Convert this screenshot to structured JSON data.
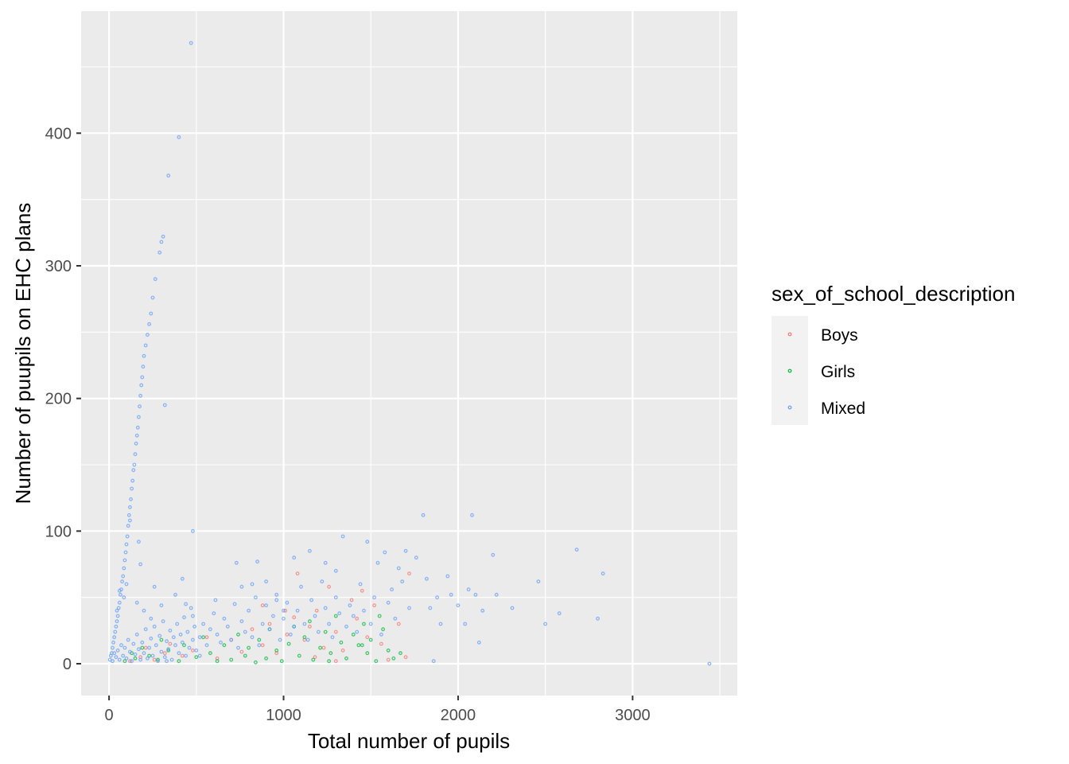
{
  "chart_data": {
    "type": "scatter",
    "title": "",
    "xlabel": "Total number of pupils",
    "ylabel": "Number of puupils on EHC plans",
    "xlim": [
      -160,
      3600
    ],
    "ylim": [
      -24,
      492
    ],
    "x_ticks": [
      0,
      1000,
      2000,
      3000
    ],
    "y_ticks": [
      0,
      100,
      200,
      300,
      400
    ],
    "x_tick_labels": [
      "0",
      "1000",
      "2000",
      "3000"
    ],
    "y_tick_labels": [
      "0",
      "100",
      "200",
      "300",
      "400"
    ],
    "grid": true,
    "panel_background": "#EBEBEB",
    "legend": {
      "title": "sex_of_school_description",
      "position": "right",
      "entries": [
        {
          "label": "Boys",
          "color": "#F8766D"
        },
        {
          "label": "Girls",
          "color": "#00BA38"
        },
        {
          "label": "Mixed",
          "color": "#619CFF"
        }
      ]
    },
    "series": [
      {
        "name": "Boys",
        "color": "#F8766D",
        "points": [
          [
            120,
            2
          ],
          [
            180,
            5
          ],
          [
            210,
            12
          ],
          [
            260,
            3
          ],
          [
            320,
            8
          ],
          [
            350,
            15
          ],
          [
            420,
            6
          ],
          [
            480,
            10
          ],
          [
            560,
            20
          ],
          [
            620,
            4
          ],
          [
            700,
            18
          ],
          [
            760,
            9
          ],
          [
            820,
            26
          ],
          [
            880,
            14
          ],
          [
            920,
            30
          ],
          [
            960,
            8
          ],
          [
            1020,
            22
          ],
          [
            1060,
            35
          ],
          [
            1080,
            68
          ],
          [
            1120,
            18
          ],
          [
            1150,
            28
          ],
          [
            1190,
            40
          ],
          [
            1230,
            12
          ],
          [
            1260,
            58
          ],
          [
            1300,
            24
          ],
          [
            1340,
            10
          ],
          [
            1390,
            48
          ],
          [
            1420,
            34
          ],
          [
            1450,
            55
          ],
          [
            1480,
            20
          ],
          [
            1520,
            44
          ],
          [
            1560,
            15
          ],
          [
            1600,
            3
          ],
          [
            1660,
            30
          ],
          [
            1700,
            5
          ],
          [
            1720,
            68
          ],
          [
            1010,
            40
          ],
          [
            880,
            44
          ],
          [
            1300,
            2
          ],
          [
            1180,
            5
          ]
        ]
      },
      {
        "name": "Girls",
        "color": "#00BA38",
        "points": [
          [
            90,
            2
          ],
          [
            130,
            8
          ],
          [
            150,
            4
          ],
          [
            190,
            12
          ],
          [
            230,
            6
          ],
          [
            280,
            3
          ],
          [
            300,
            18
          ],
          [
            340,
            10
          ],
          [
            400,
            2
          ],
          [
            430,
            14
          ],
          [
            500,
            5
          ],
          [
            540,
            20
          ],
          [
            580,
            8
          ],
          [
            620,
            2
          ],
          [
            660,
            14
          ],
          [
            700,
            3
          ],
          [
            740,
            22
          ],
          [
            780,
            6
          ],
          [
            800,
            12
          ],
          [
            840,
            1
          ],
          [
            860,
            18
          ],
          [
            900,
            4
          ],
          [
            920,
            26
          ],
          [
            960,
            10
          ],
          [
            990,
            2
          ],
          [
            1030,
            15
          ],
          [
            1060,
            28
          ],
          [
            1090,
            6
          ],
          [
            1120,
            20
          ],
          [
            1150,
            32
          ],
          [
            1170,
            3
          ],
          [
            1210,
            12
          ],
          [
            1240,
            24
          ],
          [
            1270,
            8
          ],
          [
            1300,
            36
          ],
          [
            1330,
            16
          ],
          [
            1360,
            4
          ],
          [
            1400,
            22
          ],
          [
            1430,
            14
          ],
          [
            1460,
            30
          ],
          [
            1480,
            8
          ],
          [
            1500,
            18
          ],
          [
            1530,
            2
          ],
          [
            1550,
            36
          ],
          [
            1570,
            26
          ],
          [
            1600,
            10
          ],
          [
            1630,
            4
          ],
          [
            1670,
            8
          ],
          [
            1260,
            2
          ],
          [
            1450,
            14
          ]
        ]
      },
      {
        "name": "Mixed",
        "color": "#619CFF",
        "points": [
          [
            5,
            3
          ],
          [
            10,
            6
          ],
          [
            15,
            8
          ],
          [
            20,
            12
          ],
          [
            25,
            16
          ],
          [
            30,
            20
          ],
          [
            35,
            24
          ],
          [
            40,
            28
          ],
          [
            45,
            32
          ],
          [
            50,
            36
          ],
          [
            55,
            42
          ],
          [
            60,
            46
          ],
          [
            65,
            52
          ],
          [
            70,
            56
          ],
          [
            75,
            62
          ],
          [
            80,
            66
          ],
          [
            85,
            72
          ],
          [
            90,
            78
          ],
          [
            95,
            84
          ],
          [
            100,
            90
          ],
          [
            105,
            96
          ],
          [
            110,
            104
          ],
          [
            115,
            112
          ],
          [
            120,
            118
          ],
          [
            125,
            124
          ],
          [
            130,
            132
          ],
          [
            135,
            138
          ],
          [
            140,
            146
          ],
          [
            145,
            150
          ],
          [
            150,
            158
          ],
          [
            155,
            166
          ],
          [
            160,
            172
          ],
          [
            165,
            178
          ],
          [
            170,
            186
          ],
          [
            175,
            194
          ],
          [
            180,
            202
          ],
          [
            185,
            210
          ],
          [
            190,
            216
          ],
          [
            195,
            224
          ],
          [
            200,
            232
          ],
          [
            210,
            240
          ],
          [
            220,
            248
          ],
          [
            230,
            256
          ],
          [
            240,
            264
          ],
          [
            250,
            276
          ],
          [
            265,
            290
          ],
          [
            290,
            310
          ],
          [
            300,
            318
          ],
          [
            310,
            322
          ],
          [
            340,
            368
          ],
          [
            400,
            397
          ],
          [
            470,
            468
          ],
          [
            320,
            195
          ],
          [
            480,
            100
          ],
          [
            120,
            108
          ],
          [
            180,
            75
          ],
          [
            170,
            92
          ],
          [
            60,
            55
          ],
          [
            45,
            40
          ],
          [
            85,
            50
          ],
          [
            20,
            2
          ],
          [
            30,
            8
          ],
          [
            40,
            5
          ],
          [
            50,
            10
          ],
          [
            60,
            3
          ],
          [
            70,
            14
          ],
          [
            80,
            6
          ],
          [
            90,
            12
          ],
          [
            100,
            4
          ],
          [
            110,
            18
          ],
          [
            120,
            9
          ],
          [
            130,
            2
          ],
          [
            140,
            15
          ],
          [
            150,
            7
          ],
          [
            160,
            22
          ],
          [
            170,
            11
          ],
          [
            180,
            3
          ],
          [
            190,
            16
          ],
          [
            200,
            8
          ],
          [
            210,
            26
          ],
          [
            220,
            4
          ],
          [
            230,
            12
          ],
          [
            240,
            19
          ],
          [
            250,
            6
          ],
          [
            260,
            28
          ],
          [
            270,
            14
          ],
          [
            280,
            2
          ],
          [
            290,
            21
          ],
          [
            300,
            9
          ],
          [
            310,
            32
          ],
          [
            320,
            5
          ],
          [
            330,
            17
          ],
          [
            340,
            11
          ],
          [
            350,
            25
          ],
          [
            360,
            3
          ],
          [
            370,
            20
          ],
          [
            380,
            14
          ],
          [
            390,
            30
          ],
          [
            400,
            8
          ],
          [
            410,
            22
          ],
          [
            420,
            16
          ],
          [
            430,
            35
          ],
          [
            440,
            6
          ],
          [
            450,
            24
          ],
          [
            460,
            12
          ],
          [
            470,
            42
          ],
          [
            480,
            18
          ],
          [
            490,
            28
          ],
          [
            500,
            10
          ],
          [
            520,
            20
          ],
          [
            540,
            30
          ],
          [
            560,
            14
          ],
          [
            580,
            26
          ],
          [
            600,
            38
          ],
          [
            620,
            22
          ],
          [
            640,
            16
          ],
          [
            660,
            34
          ],
          [
            680,
            28
          ],
          [
            700,
            18
          ],
          [
            720,
            45
          ],
          [
            740,
            12
          ],
          [
            760,
            32
          ],
          [
            780,
            24
          ],
          [
            800,
            40
          ],
          [
            820,
            20
          ],
          [
            840,
            50
          ],
          [
            860,
            14
          ],
          [
            880,
            30
          ],
          [
            900,
            44
          ],
          [
            920,
            26
          ],
          [
            940,
            36
          ],
          [
            960,
            52
          ],
          [
            980,
            18
          ],
          [
            1000,
            34
          ],
          [
            1020,
            46
          ],
          [
            1040,
            22
          ],
          [
            1060,
            28
          ],
          [
            1080,
            40
          ],
          [
            1100,
            58
          ],
          [
            1120,
            30
          ],
          [
            1140,
            18
          ],
          [
            1160,
            48
          ],
          [
            1180,
            36
          ],
          [
            1200,
            24
          ],
          [
            1220,
            62
          ],
          [
            1240,
            42
          ],
          [
            1260,
            30
          ],
          [
            1280,
            20
          ],
          [
            1300,
            50
          ],
          [
            1320,
            38
          ],
          [
            1340,
            96
          ],
          [
            1360,
            28
          ],
          [
            1380,
            44
          ],
          [
            1400,
            36
          ],
          [
            1420,
            24
          ],
          [
            1440,
            60
          ],
          [
            1460,
            40
          ],
          [
            1480,
            92
          ],
          [
            1500,
            30
          ],
          [
            1520,
            50
          ],
          [
            1540,
            76
          ],
          [
            1560,
            22
          ],
          [
            1580,
            84
          ],
          [
            1600,
            46
          ],
          [
            1620,
            56
          ],
          [
            1640,
            34
          ],
          [
            1660,
            72
          ],
          [
            1680,
            62
          ],
          [
            1700,
            85
          ],
          [
            1720,
            42
          ],
          [
            1760,
            80
          ],
          [
            1800,
            112
          ],
          [
            1820,
            64
          ],
          [
            1840,
            42
          ],
          [
            1860,
            2
          ],
          [
            1880,
            50
          ],
          [
            1900,
            30
          ],
          [
            1940,
            66
          ],
          [
            1960,
            52
          ],
          [
            2000,
            44
          ],
          [
            2040,
            30
          ],
          [
            2060,
            56
          ],
          [
            2080,
            112
          ],
          [
            2100,
            52
          ],
          [
            2120,
            16
          ],
          [
            2140,
            40
          ],
          [
            2200,
            82
          ],
          [
            2220,
            52
          ],
          [
            2310,
            42
          ],
          [
            2460,
            62
          ],
          [
            2500,
            30
          ],
          [
            2580,
            38
          ],
          [
            2680,
            86
          ],
          [
            2800,
            34
          ],
          [
            2830,
            68
          ],
          [
            3440,
            0
          ],
          [
            480,
            36
          ],
          [
            520,
            6
          ],
          [
            610,
            48
          ],
          [
            730,
            76
          ],
          [
            760,
            58
          ],
          [
            820,
            60
          ],
          [
            850,
            77
          ],
          [
            900,
            62
          ],
          [
            960,
            48
          ],
          [
            1000,
            40
          ],
          [
            1060,
            80
          ],
          [
            1150,
            85
          ],
          [
            1240,
            76
          ],
          [
            1300,
            70
          ],
          [
            100,
            60
          ],
          [
            200,
            40
          ],
          [
            300,
            44
          ],
          [
            380,
            52
          ],
          [
            420,
            64
          ],
          [
            260,
            58
          ],
          [
            330,
            2
          ],
          [
            440,
            45
          ],
          [
            160,
            46
          ],
          [
            240,
            34
          ]
        ]
      }
    ]
  }
}
